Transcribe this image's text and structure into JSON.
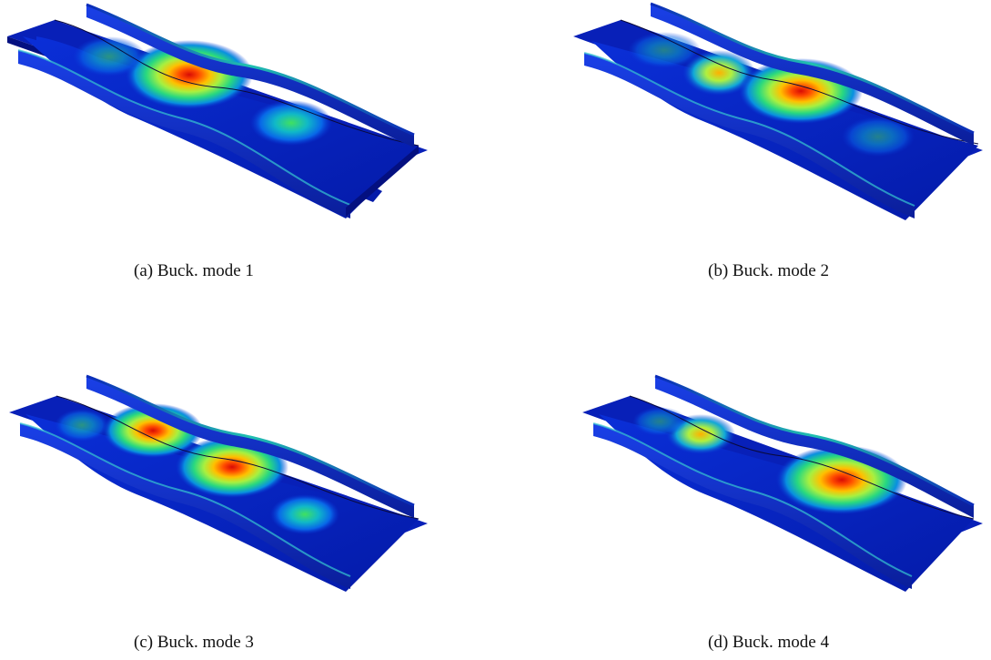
{
  "figure": {
    "subfigures": [
      {
        "id": "a",
        "caption": "(a) Buck. mode 1",
        "peak_color": "#e8110a"
      },
      {
        "id": "b",
        "caption": "(b) Buck. mode 2",
        "peak_color": "#e8110a"
      },
      {
        "id": "c",
        "caption": "(c) Buck. mode 3",
        "peak_color": "#e8110a"
      },
      {
        "id": "d",
        "caption": "(d) Buck. mode 4",
        "peak_color": "#e8110a"
      }
    ],
    "colormap": [
      "#00008f",
      "#0030ff",
      "#00c0ff",
      "#30e070",
      "#f0e000",
      "#ff6a00",
      "#e8110a"
    ]
  }
}
